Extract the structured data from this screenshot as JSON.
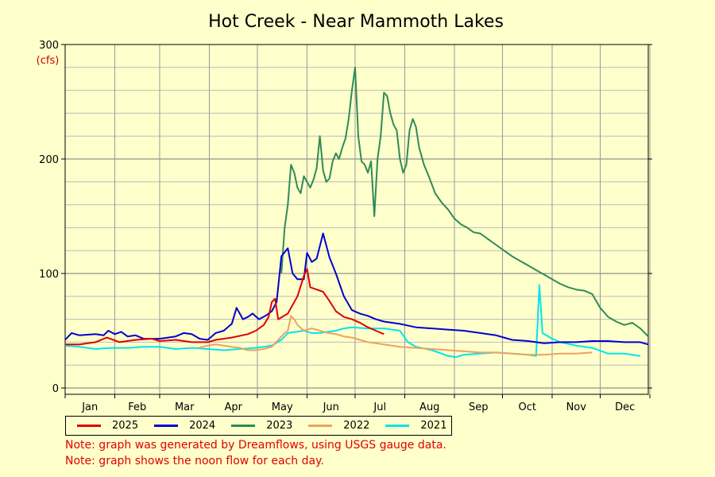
{
  "chart_data": {
    "type": "line",
    "title": "Hot Creek - Near Mammoth Lakes",
    "ylabel": "(cfs)",
    "ylim": [
      0,
      300
    ],
    "y_ticks": [
      0,
      100,
      200,
      300
    ],
    "months": [
      "Jan",
      "Feb",
      "Mar",
      "Apr",
      "May",
      "Jun",
      "Jul",
      "Aug",
      "Sep",
      "Oct",
      "Nov",
      "Dec"
    ],
    "grid": true,
    "legend_position": "bottom",
    "series": [
      {
        "name": "2025",
        "color": "#e00000",
        "points": [
          [
            1,
            38
          ],
          [
            10,
            38
          ],
          [
            20,
            40
          ],
          [
            27,
            44
          ],
          [
            31,
            42
          ],
          [
            35,
            40
          ],
          [
            45,
            42
          ],
          [
            55,
            43
          ],
          [
            60,
            41
          ],
          [
            70,
            42
          ],
          [
            80,
            40
          ],
          [
            90,
            40
          ],
          [
            95,
            42
          ],
          [
            105,
            44
          ],
          [
            115,
            47
          ],
          [
            120,
            50
          ],
          [
            125,
            55
          ],
          [
            128,
            62
          ],
          [
            130,
            75
          ],
          [
            132,
            78
          ],
          [
            134,
            60
          ],
          [
            140,
            65
          ],
          [
            146,
            80
          ],
          [
            150,
            98
          ],
          [
            152,
            104
          ],
          [
            154,
            88
          ],
          [
            158,
            86
          ],
          [
            162,
            84
          ],
          [
            166,
            76
          ],
          [
            170,
            67
          ],
          [
            175,
            62
          ],
          [
            180,
            60
          ],
          [
            185,
            57
          ],
          [
            190,
            53
          ],
          [
            195,
            50
          ],
          [
            200,
            47
          ]
        ]
      },
      {
        "name": "2024",
        "color": "#0000d0",
        "points": [
          [
            1,
            42
          ],
          [
            5,
            48
          ],
          [
            10,
            46
          ],
          [
            20,
            47
          ],
          [
            25,
            46
          ],
          [
            28,
            50
          ],
          [
            32,
            47
          ],
          [
            36,
            49
          ],
          [
            40,
            45
          ],
          [
            45,
            46
          ],
          [
            50,
            43
          ],
          [
            60,
            43
          ],
          [
            70,
            45
          ],
          [
            75,
            48
          ],
          [
            80,
            47
          ],
          [
            85,
            43
          ],
          [
            90,
            42
          ],
          [
            95,
            48
          ],
          [
            100,
            50
          ],
          [
            105,
            56
          ],
          [
            108,
            70
          ],
          [
            112,
            60
          ],
          [
            115,
            62
          ],
          [
            118,
            65
          ],
          [
            122,
            60
          ],
          [
            126,
            63
          ],
          [
            130,
            67
          ],
          [
            133,
            75
          ],
          [
            136,
            115
          ],
          [
            140,
            122
          ],
          [
            143,
            100
          ],
          [
            146,
            95
          ],
          [
            150,
            95
          ],
          [
            152,
            118
          ],
          [
            155,
            110
          ],
          [
            158,
            113
          ],
          [
            162,
            135
          ],
          [
            166,
            114
          ],
          [
            170,
            100
          ],
          [
            175,
            80
          ],
          [
            180,
            68
          ],
          [
            185,
            65
          ],
          [
            190,
            63
          ],
          [
            195,
            60
          ],
          [
            200,
            58
          ],
          [
            210,
            56
          ],
          [
            220,
            53
          ],
          [
            230,
            52
          ],
          [
            240,
            51
          ],
          [
            250,
            50
          ],
          [
            260,
            48
          ],
          [
            270,
            46
          ],
          [
            280,
            42
          ],
          [
            290,
            41
          ],
          [
            300,
            39
          ],
          [
            310,
            40
          ],
          [
            320,
            40
          ],
          [
            330,
            41
          ],
          [
            340,
            41
          ],
          [
            350,
            40
          ],
          [
            360,
            40
          ],
          [
            365,
            38
          ]
        ]
      },
      {
        "name": "2023",
        "color": "#2e8b57",
        "points": [
          [
            136,
            100
          ],
          [
            138,
            140
          ],
          [
            140,
            160
          ],
          [
            142,
            195
          ],
          [
            144,
            188
          ],
          [
            146,
            175
          ],
          [
            148,
            170
          ],
          [
            150,
            185
          ],
          [
            152,
            180
          ],
          [
            154,
            175
          ],
          [
            156,
            182
          ],
          [
            158,
            192
          ],
          [
            160,
            220
          ],
          [
            162,
            190
          ],
          [
            164,
            180
          ],
          [
            166,
            183
          ],
          [
            168,
            198
          ],
          [
            170,
            205
          ],
          [
            172,
            200
          ],
          [
            174,
            210
          ],
          [
            176,
            218
          ],
          [
            178,
            235
          ],
          [
            180,
            260
          ],
          [
            182,
            280
          ],
          [
            184,
            220
          ],
          [
            186,
            198
          ],
          [
            188,
            195
          ],
          [
            190,
            188
          ],
          [
            192,
            198
          ],
          [
            194,
            150
          ],
          [
            196,
            200
          ],
          [
            198,
            220
          ],
          [
            200,
            258
          ],
          [
            202,
            255
          ],
          [
            204,
            240
          ],
          [
            206,
            230
          ],
          [
            208,
            225
          ],
          [
            210,
            200
          ],
          [
            212,
            188
          ],
          [
            214,
            195
          ],
          [
            216,
            225
          ],
          [
            218,
            235
          ],
          [
            220,
            228
          ],
          [
            222,
            210
          ],
          [
            225,
            195
          ],
          [
            228,
            185
          ],
          [
            232,
            170
          ],
          [
            236,
            162
          ],
          [
            240,
            156
          ],
          [
            244,
            148
          ],
          [
            248,
            143
          ],
          [
            252,
            140
          ],
          [
            256,
            136
          ],
          [
            260,
            135
          ],
          [
            265,
            130
          ],
          [
            270,
            125
          ],
          [
            275,
            120
          ],
          [
            280,
            115
          ],
          [
            285,
            111
          ],
          [
            290,
            107
          ],
          [
            295,
            103
          ],
          [
            300,
            99
          ],
          [
            305,
            95
          ],
          [
            310,
            91
          ],
          [
            315,
            88
          ],
          [
            320,
            86
          ],
          [
            325,
            85
          ],
          [
            330,
            82
          ],
          [
            335,
            70
          ],
          [
            340,
            62
          ],
          [
            345,
            58
          ],
          [
            350,
            55
          ],
          [
            355,
            57
          ],
          [
            360,
            52
          ],
          [
            365,
            45
          ]
        ]
      },
      {
        "name": "2022",
        "color": "#f0a060",
        "points": [
          [
            84,
            35
          ],
          [
            90,
            37
          ],
          [
            95,
            38
          ],
          [
            100,
            37
          ],
          [
            105,
            36
          ],
          [
            110,
            35
          ],
          [
            115,
            33
          ],
          [
            120,
            33
          ],
          [
            125,
            34
          ],
          [
            130,
            36
          ],
          [
            134,
            42
          ],
          [
            138,
            48
          ],
          [
            140,
            50
          ],
          [
            142,
            63
          ],
          [
            144,
            60
          ],
          [
            146,
            55
          ],
          [
            150,
            50
          ],
          [
            155,
            52
          ],
          [
            160,
            50
          ],
          [
            165,
            48
          ],
          [
            170,
            47
          ],
          [
            175,
            45
          ],
          [
            180,
            44
          ],
          [
            185,
            42
          ],
          [
            190,
            40
          ],
          [
            195,
            39
          ],
          [
            200,
            38
          ],
          [
            210,
            36
          ],
          [
            220,
            35
          ],
          [
            230,
            34
          ],
          [
            240,
            33
          ],
          [
            250,
            32
          ],
          [
            260,
            31
          ],
          [
            270,
            31
          ],
          [
            280,
            30
          ],
          [
            290,
            29
          ],
          [
            300,
            29
          ],
          [
            310,
            30
          ],
          [
            320,
            30
          ],
          [
            330,
            31
          ]
        ]
      },
      {
        "name": "2021",
        "color": "#00e5ee",
        "points": [
          [
            1,
            37
          ],
          [
            10,
            36
          ],
          [
            20,
            34
          ],
          [
            30,
            35
          ],
          [
            40,
            35
          ],
          [
            50,
            36
          ],
          [
            60,
            36
          ],
          [
            70,
            34
          ],
          [
            80,
            35
          ],
          [
            90,
            34
          ],
          [
            100,
            33
          ],
          [
            110,
            34
          ],
          [
            120,
            35
          ],
          [
            130,
            37
          ],
          [
            136,
            42
          ],
          [
            140,
            48
          ],
          [
            150,
            50
          ],
          [
            155,
            48
          ],
          [
            160,
            48
          ],
          [
            170,
            50
          ],
          [
            175,
            52
          ],
          [
            180,
            53
          ],
          [
            190,
            52
          ],
          [
            200,
            52
          ],
          [
            210,
            50
          ],
          [
            215,
            40
          ],
          [
            220,
            36
          ],
          [
            230,
            33
          ],
          [
            240,
            28
          ],
          [
            245,
            27
          ],
          [
            250,
            29
          ],
          [
            260,
            30
          ],
          [
            270,
            31
          ],
          [
            280,
            30
          ],
          [
            290,
            29
          ],
          [
            295,
            28
          ],
          [
            297,
            90
          ],
          [
            299,
            48
          ],
          [
            305,
            43
          ],
          [
            310,
            40
          ],
          [
            320,
            37
          ],
          [
            330,
            35
          ],
          [
            340,
            30
          ],
          [
            350,
            30
          ],
          [
            355,
            29
          ],
          [
            360,
            28
          ]
        ]
      }
    ]
  },
  "notes": [
    "Note: graph was generated by Dreamflows, using USGS gauge data.",
    "Note: graph shows the noon flow for each day."
  ]
}
